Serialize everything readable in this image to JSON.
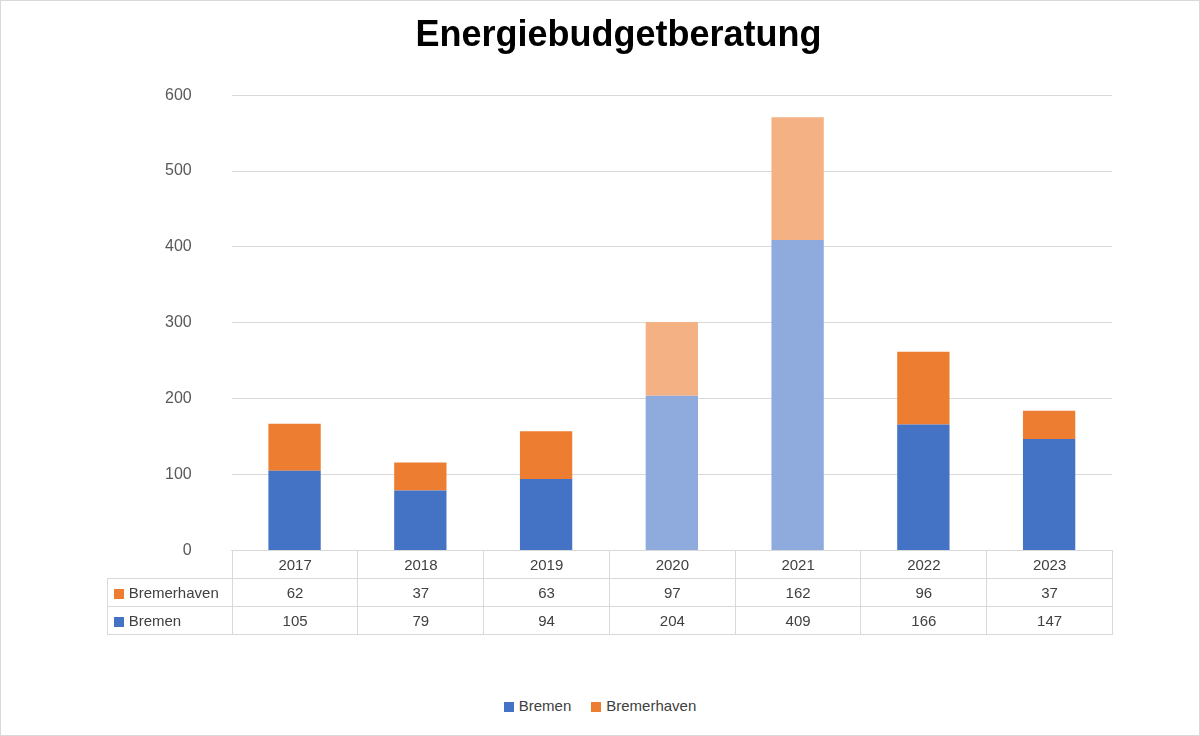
{
  "chart_data": {
    "type": "bar",
    "title": "Energiebudgetberatung",
    "categories": [
      "2017",
      "2018",
      "2019",
      "2020",
      "2021",
      "2022",
      "2023"
    ],
    "series": [
      {
        "name": "Bremen",
        "color": "#4472c4",
        "colors": [
          "#4472c4",
          "#4472c4",
          "#4472c4",
          "#8faadc",
          "#8faadc",
          "#4472c4",
          "#4472c4"
        ],
        "values": [
          105,
          79,
          94,
          204,
          409,
          166,
          147
        ]
      },
      {
        "name": "Bremerhaven",
        "color": "#ed7d31",
        "colors": [
          "#ed7d31",
          "#ed7d31",
          "#ed7d31",
          "#f4b183",
          "#f4b183",
          "#ed7d31",
          "#ed7d31"
        ],
        "values": [
          62,
          37,
          63,
          97,
          162,
          96,
          37
        ]
      }
    ],
    "ylim": [
      0,
      600
    ],
    "yticks": [
      0,
      100,
      200,
      300,
      400,
      500,
      600
    ],
    "grid": true,
    "stacked": true,
    "legend": "bottom"
  }
}
